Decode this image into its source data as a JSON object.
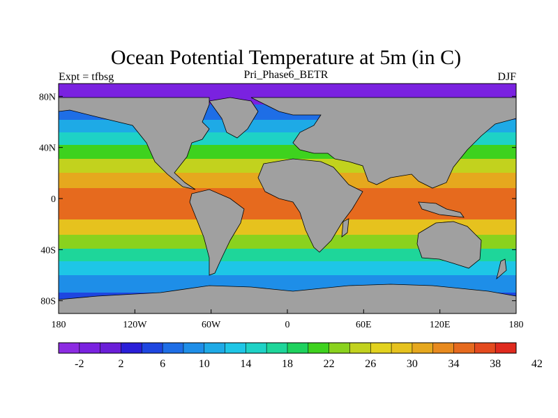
{
  "title": "Ocean Potential Temperature at 5m (in C)",
  "left_label": "Expt = tfbsg",
  "center_label": "Pri_Phase6_BETR",
  "right_label": "DJF",
  "lat_ticks": [
    "80N",
    "40N",
    "0",
    "40S",
    "80S"
  ],
  "lat_values": [
    80,
    40,
    0,
    -40,
    -80
  ],
  "lon_ticks": [
    "180",
    "120W",
    "60W",
    "0",
    "60E",
    "120E",
    "180"
  ],
  "lon_values": [
    -180,
    -120,
    -60,
    0,
    60,
    120,
    180
  ],
  "colorbar": {
    "labels": [
      "-2",
      "2",
      "6",
      "10",
      "14",
      "18",
      "22",
      "26",
      "30",
      "34",
      "38",
      "42"
    ],
    "colors": [
      "#8c2be2",
      "#7a22e0",
      "#6a1ed8",
      "#2a1ed8",
      "#1e46e0",
      "#1e6ee6",
      "#1e8ee8",
      "#1eaae6",
      "#1ec6e6",
      "#1ed2c6",
      "#1ed69a",
      "#1ed25e",
      "#3ed21e",
      "#8ad21e",
      "#c2d21e",
      "#e2d21e",
      "#e6c21e",
      "#e6a81e",
      "#e88a1e",
      "#e66a1e",
      "#e44a1e",
      "#e02a1e"
    ]
  },
  "colors": {
    "land": "#a0a0a0",
    "coast": "#000000"
  }
}
